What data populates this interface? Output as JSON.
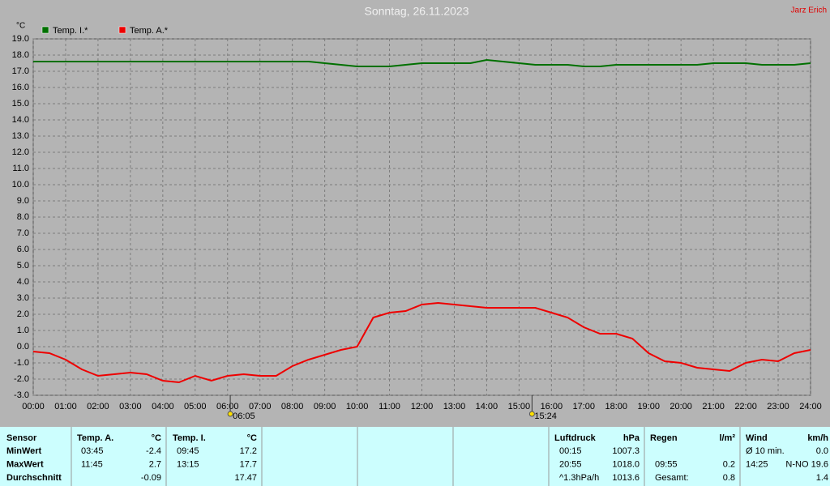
{
  "chart_data": {
    "type": "line",
    "title": "Sonntag, 26.11.2023",
    "author": "Jarz Erich",
    "y_unit": "°C",
    "xlim": [
      0,
      24
    ],
    "ylim": [
      -3,
      19
    ],
    "grid": true,
    "x": [
      0,
      0.5,
      1,
      1.5,
      2,
      2.5,
      3,
      3.5,
      4,
      4.5,
      5,
      5.5,
      6,
      6.5,
      7,
      7.5,
      8,
      8.5,
      9,
      9.5,
      10,
      10.5,
      11,
      11.5,
      12,
      12.5,
      13,
      13.5,
      14,
      14.5,
      15,
      15.5,
      16,
      16.5,
      17,
      17.5,
      18,
      18.5,
      19,
      19.5,
      20,
      20.5,
      21,
      21.5,
      22,
      22.5,
      23,
      23.5,
      24
    ],
    "xticks": [
      {
        "value": 0,
        "label": "00:00"
      },
      {
        "value": 1,
        "label": "01:00"
      },
      {
        "value": 2,
        "label": "02:00"
      },
      {
        "value": 3,
        "label": "03:00"
      },
      {
        "value": 4,
        "label": "04:00"
      },
      {
        "value": 5,
        "label": "05:00"
      },
      {
        "value": 6,
        "label": "06:00"
      },
      {
        "value": 7,
        "label": "07:00"
      },
      {
        "value": 8,
        "label": "08:00"
      },
      {
        "value": 9,
        "label": "09:00"
      },
      {
        "value": 10,
        "label": "10:00"
      },
      {
        "value": 11,
        "label": "11:00"
      },
      {
        "value": 12,
        "label": "12:00"
      },
      {
        "value": 13,
        "label": "13:00"
      },
      {
        "value": 14,
        "label": "14:00"
      },
      {
        "value": 15,
        "label": "15:00"
      },
      {
        "value": 16,
        "label": "16:00"
      },
      {
        "value": 17,
        "label": "17:00"
      },
      {
        "value": 18,
        "label": "18:00"
      },
      {
        "value": 19,
        "label": "19:00"
      },
      {
        "value": 20,
        "label": "20:00"
      },
      {
        "value": 21,
        "label": "21:00"
      },
      {
        "value": 22,
        "label": "22:00"
      },
      {
        "value": 23,
        "label": "23:00"
      },
      {
        "value": 24,
        "label": "24:00"
      }
    ],
    "yticks": [
      {
        "value": 19,
        "label": "19.0"
      },
      {
        "value": 18,
        "label": "18.0"
      },
      {
        "value": 17,
        "label": "17.0"
      },
      {
        "value": 16,
        "label": "16.0"
      },
      {
        "value": 15,
        "label": "15.0"
      },
      {
        "value": 14,
        "label": "14.0"
      },
      {
        "value": 13,
        "label": "13.0"
      },
      {
        "value": 12,
        "label": "12.0"
      },
      {
        "value": 11,
        "label": "11.0"
      },
      {
        "value": 10,
        "label": "10.0"
      },
      {
        "value": 9,
        "label": "9.0"
      },
      {
        "value": 8,
        "label": "8.0"
      },
      {
        "value": 7,
        "label": "7.0"
      },
      {
        "value": 6,
        "label": "6.0"
      },
      {
        "value": 5,
        "label": "5.0"
      },
      {
        "value": 4,
        "label": "4.0"
      },
      {
        "value": 3,
        "label": "3.0"
      },
      {
        "value": 2,
        "label": "2.0"
      },
      {
        "value": 1,
        "label": "1.0"
      },
      {
        "value": 0,
        "label": "0.0"
      },
      {
        "value": -1,
        "label": "-1.0"
      },
      {
        "value": -2,
        "label": "-2.0"
      },
      {
        "value": -3,
        "label": "-3.0"
      }
    ],
    "annotations": [
      {
        "value": 6.0833,
        "label": "06:05"
      },
      {
        "value": 15.4,
        "label": "15:24"
      }
    ],
    "series": [
      {
        "name": "Temp. I.*",
        "color": "#007000",
        "values": [
          17.6,
          17.6,
          17.6,
          17.6,
          17.6,
          17.6,
          17.6,
          17.6,
          17.6,
          17.6,
          17.6,
          17.6,
          17.6,
          17.6,
          17.6,
          17.6,
          17.6,
          17.6,
          17.5,
          17.4,
          17.3,
          17.3,
          17.3,
          17.4,
          17.5,
          17.5,
          17.5,
          17.5,
          17.7,
          17.6,
          17.5,
          17.4,
          17.4,
          17.4,
          17.3,
          17.3,
          17.4,
          17.4,
          17.4,
          17.4,
          17.4,
          17.4,
          17.5,
          17.5,
          17.5,
          17.4,
          17.4,
          17.4,
          17.5
        ]
      },
      {
        "name": "Temp. A.*",
        "color": "#ee0000",
        "values": [
          -0.3,
          -0.4,
          -0.8,
          -1.4,
          -1.8,
          -1.7,
          -1.6,
          -1.7,
          -2.1,
          -2.2,
          -1.8,
          -2.1,
          -1.8,
          -1.7,
          -1.8,
          -1.8,
          -1.2,
          -0.8,
          -0.5,
          -0.2,
          0.0,
          1.8,
          2.1,
          2.2,
          2.6,
          2.7,
          2.6,
          2.5,
          2.4,
          2.4,
          2.4,
          2.4,
          2.1,
          1.8,
          1.2,
          0.8,
          0.8,
          0.5,
          -0.4,
          -0.9,
          -1.0,
          -1.3,
          -1.4,
          -1.5,
          -1.0,
          -0.8,
          -0.9,
          -0.4,
          -0.2
        ]
      }
    ]
  },
  "table": {
    "header": {
      "sensor": "Sensor",
      "temp_a": "Temp. A.",
      "temp_a_unit": "°C",
      "temp_i": "Temp. I.",
      "temp_i_unit": "°C",
      "pressure": "Luftdruck",
      "pressure_unit": "hPa",
      "rain": "Regen",
      "rain_unit": "l/m²",
      "wind": "Wind",
      "wind_unit": "km/h"
    },
    "rows": [
      {
        "sensor": "MinWert",
        "temp_a_time": "03:45",
        "temp_a": "-2.4",
        "temp_i_time": "09:45",
        "temp_i": "17.2",
        "pressure_time": "00:15",
        "pressure": "1007.3",
        "wind_time": "Ø 10 min.",
        "wind": "0.0"
      },
      {
        "sensor": "MaxWert",
        "temp_a_time": "11:45",
        "temp_a": "2.7",
        "temp_i_time": "13:15",
        "temp_i": "17.7",
        "pressure_time": "20:55",
        "pressure": "1018.0",
        "rain_time": "09:55",
        "rain": "0.2",
        "wind_time": "14:25",
        "wind": "N-NO 19.6"
      },
      {
        "sensor": "Durchschnitt",
        "temp_a": "-0.09",
        "temp_i": "17.47",
        "pressure_time": "^1.3hPa/h",
        "pressure": "1013.6",
        "rain_time": "Gesamt:",
        "rain": "0.8",
        "wind": "1.4"
      }
    ]
  }
}
